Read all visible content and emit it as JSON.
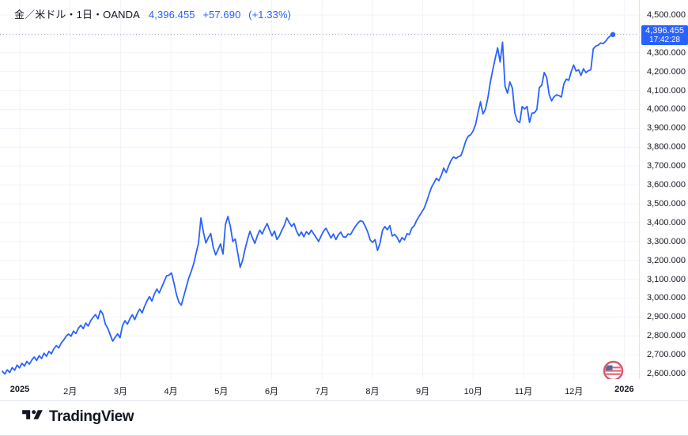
{
  "header": {
    "symbol": "金／米ドル",
    "interval": "1日",
    "exchange": "OANDA",
    "separator": "・",
    "last_price": "4,396.455",
    "change": "+57.690",
    "change_pct": "(+1.33%)"
  },
  "price_scale": {
    "ticks": [
      {
        "label": "4,500.000",
        "value": 4500
      },
      {
        "label": "4,300.000",
        "value": 4300
      },
      {
        "label": "4,200.000",
        "value": 4200
      },
      {
        "label": "4,100.000",
        "value": 4100
      },
      {
        "label": "4,000.000",
        "value": 4000
      },
      {
        "label": "3,900.000",
        "value": 3900
      },
      {
        "label": "3,800.000",
        "value": 3800
      },
      {
        "label": "3,700.000",
        "value": 3700
      },
      {
        "label": "3,600.000",
        "value": 3600
      },
      {
        "label": "3,500.000",
        "value": 3500
      },
      {
        "label": "3,400.000",
        "value": 3400
      },
      {
        "label": "3,300.000",
        "value": 3300
      },
      {
        "label": "3,200.000",
        "value": 3200
      },
      {
        "label": "3,100.000",
        "value": 3100
      },
      {
        "label": "3,000.000",
        "value": 3000
      },
      {
        "label": "2,900.000",
        "value": 2900
      },
      {
        "label": "2,800.000",
        "value": 2800
      },
      {
        "label": "2,700.000",
        "value": 2700
      },
      {
        "label": "2,600.000",
        "value": 2600
      }
    ],
    "badge": {
      "price": "4,396.455",
      "countdown": "17:42:28"
    }
  },
  "time_scale": {
    "labels": [
      {
        "text": "2025",
        "t": 0,
        "bold": true
      },
      {
        "text": "2月",
        "t": 1,
        "bold": false
      },
      {
        "text": "3月",
        "t": 2,
        "bold": false
      },
      {
        "text": "4月",
        "t": 3,
        "bold": false
      },
      {
        "text": "5月",
        "t": 4,
        "bold": false
      },
      {
        "text": "6月",
        "t": 5,
        "bold": false
      },
      {
        "text": "7月",
        "t": 6,
        "bold": false
      },
      {
        "text": "8月",
        "t": 7,
        "bold": false
      },
      {
        "text": "9月",
        "t": 8,
        "bold": false
      },
      {
        "text": "10月",
        "t": 9,
        "bold": false
      },
      {
        "text": "11月",
        "t": 10,
        "bold": false
      },
      {
        "text": "12月",
        "t": 11,
        "bold": false
      },
      {
        "text": "2026",
        "t": 12,
        "bold": true
      }
    ]
  },
  "footer": {
    "logo_text": "TradingView"
  },
  "colors": {
    "line": "#2962FF",
    "grid": "#f0f3fa",
    "axis_text": "#131722",
    "badge_bg": "#2962FF",
    "badge_text": "#ffffff",
    "dotted_price_line": "#9aa7c7",
    "axis_border": "#e0e3eb"
  },
  "chart_data": {
    "type": "line",
    "title": "金／米ドル・1日・OANDA (XAU/USD daily closes, 2025)",
    "legend_position": "none",
    "grid": true,
    "y_axis": {
      "min": 2600,
      "max": 4500,
      "step": 100,
      "label_format": "#,##0.000"
    },
    "x_axis": {
      "unit": "months since 2025-01-01",
      "range": [
        -0.35,
        11.78
      ],
      "tick_months": [
        0,
        1,
        2,
        3,
        4,
        5,
        6,
        7,
        8,
        9,
        10,
        11,
        12
      ]
    },
    "last_price": 4396.455,
    "last_time": "17:42:28",
    "series": [
      {
        "name": "金／米ドル close",
        "color": "#2962FF",
        "prices": [
          2612,
          2598,
          2620,
          2606,
          2632,
          2618,
          2645,
          2630,
          2655,
          2640,
          2665,
          2650,
          2672,
          2688,
          2670,
          2695,
          2680,
          2708,
          2692,
          2718,
          2705,
          2732,
          2748,
          2736,
          2762,
          2778,
          2798,
          2810,
          2798,
          2825,
          2812,
          2840,
          2856,
          2838,
          2868,
          2852,
          2880,
          2898,
          2912,
          2890,
          2935,
          2915,
          2862,
          2840,
          2805,
          2772,
          2792,
          2810,
          2790,
          2855,
          2880,
          2862,
          2890,
          2912,
          2886,
          2918,
          2942,
          2922,
          2956,
          2985,
          3008,
          2984,
          3022,
          3048,
          3028,
          3058,
          3088,
          3118,
          3122,
          3133,
          3080,
          3020,
          2978,
          2963,
          3010,
          3058,
          3105,
          3140,
          3180,
          3237,
          3290,
          3425,
          3350,
          3292,
          3320,
          3342,
          3270,
          3229,
          3258,
          3287,
          3233,
          3390,
          3433,
          3380,
          3300,
          3313,
          3240,
          3163,
          3200,
          3260,
          3310,
          3354,
          3320,
          3290,
          3330,
          3360,
          3340,
          3370,
          3395,
          3360,
          3330,
          3355,
          3310,
          3330,
          3360,
          3385,
          3425,
          3400,
          3380,
          3395,
          3355,
          3330,
          3350,
          3325,
          3352,
          3338,
          3360,
          3340,
          3320,
          3300,
          3330,
          3355,
          3370,
          3345,
          3318,
          3340,
          3310,
          3335,
          3350,
          3325,
          3322,
          3340,
          3337,
          3360,
          3380,
          3398,
          3410,
          3405,
          3380,
          3350,
          3308,
          3295,
          3310,
          3253,
          3290,
          3358,
          3379,
          3362,
          3384,
          3329,
          3337,
          3321,
          3295,
          3321,
          3308,
          3341,
          3337,
          3371,
          3384,
          3413,
          3434,
          3455,
          3476,
          3510,
          3550,
          3587,
          3610,
          3635,
          3622,
          3650,
          3689,
          3665,
          3700,
          3730,
          3748,
          3740,
          3749,
          3755,
          3790,
          3833,
          3858,
          3865,
          3886,
          3920,
          3983,
          4040,
          3976,
          4000,
          4060,
          4143,
          4209,
          4270,
          4326,
          4251,
          4356,
          4123,
          4086,
          4145,
          4113,
          3981,
          3940,
          3930,
          4015,
          4002,
          4016,
          3931,
          3980,
          3982,
          4000,
          4115,
          4129,
          4195,
          4170,
          4080,
          4045,
          4067,
          4077,
          4073,
          4065,
          4135,
          4160,
          4154,
          4200,
          4235,
          4203,
          4210,
          4180,
          4215,
          4195,
          4205,
          4210,
          4320,
          4335,
          4340,
          4352,
          4348,
          4360,
          4378,
          4390,
          4396.455
        ]
      }
    ]
  }
}
